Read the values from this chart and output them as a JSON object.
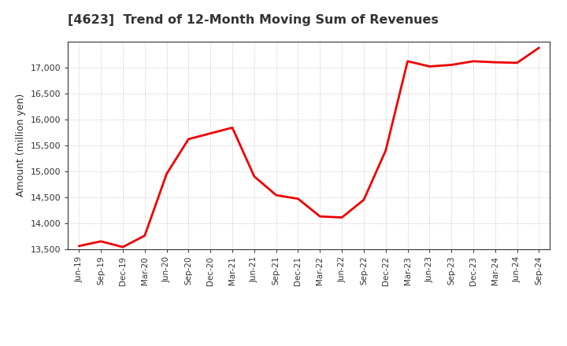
{
  "title": "[4623]  Trend of 12-Month Moving Sum of Revenues",
  "ylabel": "Amount (million yen)",
  "line_color": "#ee0000",
  "line_width": 2.0,
  "background_color": "#ffffff",
  "grid_color": "#999999",
  "x_labels": [
    "Jun-19",
    "Sep-19",
    "Dec-19",
    "Mar-20",
    "Jun-20",
    "Sep-20",
    "Dec-20",
    "Mar-21",
    "Jun-21",
    "Sep-21",
    "Dec-21",
    "Mar-22",
    "Jun-22",
    "Sep-22",
    "Dec-22",
    "Mar-23",
    "Jun-23",
    "Sep-23",
    "Dec-23",
    "Mar-24",
    "Jun-24",
    "Sep-24"
  ],
  "values": [
    13560,
    13650,
    13540,
    13760,
    14950,
    15620,
    15730,
    15840,
    14900,
    14540,
    14470,
    14130,
    14110,
    14450,
    15400,
    17120,
    17020,
    17050,
    17120,
    17100,
    17090,
    17380
  ],
  "ylim": [
    13500,
    17500
  ],
  "yticks": [
    13500,
    14000,
    14500,
    15000,
    15500,
    16000,
    16500,
    17000
  ],
  "title_color": "#333333",
  "axis_color": "#333333",
  "tick_label_color": "#333333",
  "spine_color": "#333333"
}
